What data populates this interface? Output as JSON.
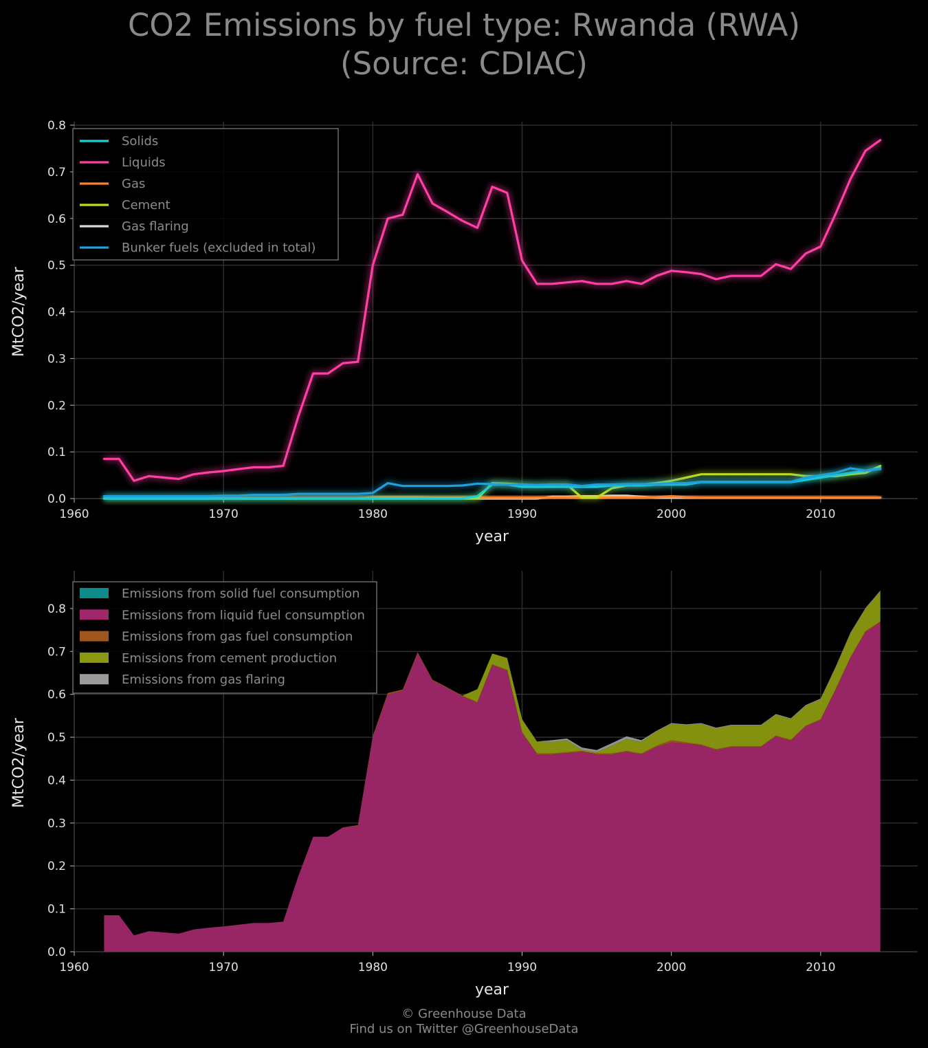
{
  "title": {
    "line1": "CO2 Emissions by fuel type: Rwanda (RWA)",
    "line2": "(Source: CDIAC)"
  },
  "footer": {
    "line1": "© Greenhouse Data",
    "line2": "Find us on Twitter @GreenhouseData"
  },
  "chart_data": [
    {
      "type": "line",
      "xlabel": "year",
      "ylabel": "MtCO2/year",
      "xlim": [
        1960,
        2016.5
      ],
      "ylim": [
        0,
        0.8
      ],
      "xticks": [
        1960,
        1970,
        1980,
        1990,
        2000,
        2010
      ],
      "xtick_labels": [
        "1960",
        "1970",
        "1980",
        "1990",
        "2000",
        "2010"
      ],
      "yticks": [
        0,
        0.1,
        0.2,
        0.3,
        0.4,
        0.5,
        0.6,
        0.7,
        0.8
      ],
      "ytick_labels": [
        "0.0",
        "0.1",
        "0.2",
        "0.3",
        "0.4",
        "0.5",
        "0.6",
        "0.7",
        "0.8"
      ],
      "grid": true,
      "legend_position": "top-left",
      "x": [
        1962,
        1963,
        1964,
        1965,
        1966,
        1967,
        1968,
        1969,
        1970,
        1971,
        1972,
        1973,
        1974,
        1975,
        1976,
        1977,
        1978,
        1979,
        1980,
        1981,
        1982,
        1983,
        1984,
        1985,
        1986,
        1987,
        1988,
        1989,
        1990,
        1991,
        1992,
        1993,
        1994,
        1995,
        1996,
        1997,
        1998,
        1999,
        2000,
        2001,
        2002,
        2003,
        2004,
        2005,
        2006,
        2007,
        2008,
        2009,
        2010,
        2011,
        2012,
        2013,
        2014
      ],
      "series": [
        {
          "name": "Solids",
          "color": "#17d4d4",
          "values": [
            0,
            0,
            0,
            0,
            0,
            0,
            0,
            0,
            0,
            0,
            0,
            0,
            0,
            0,
            0,
            0,
            0,
            0,
            0,
            0,
            0,
            0,
            0,
            0,
            0,
            0.005,
            0.03,
            0.03,
            0.025,
            0.025,
            0.025,
            0.025,
            0.025,
            0.025,
            0.028,
            0.028,
            0.028,
            0.03,
            0.03,
            0.03,
            0.035,
            0.035,
            0.035,
            0.035,
            0.035,
            0.035,
            0.035,
            0.04,
            0.045,
            0.05,
            0.055,
            0.06,
            0.065
          ]
        },
        {
          "name": "Liquids",
          "color": "#ff3fa4",
          "values": [
            0.085,
            0.085,
            0.038,
            0.048,
            0.045,
            0.042,
            0.052,
            0.056,
            0.059,
            0.063,
            0.067,
            0.067,
            0.07,
            0.175,
            0.268,
            0.268,
            0.29,
            0.293,
            0.5,
            0.6,
            0.608,
            0.695,
            0.632,
            0.614,
            0.595,
            0.58,
            0.668,
            0.655,
            0.51,
            0.46,
            0.46,
            0.463,
            0.466,
            0.46,
            0.46,
            0.466,
            0.46,
            0.477,
            0.488,
            0.485,
            0.481,
            0.47,
            0.477,
            0.477,
            0.477,
            0.502,
            0.492,
            0.525,
            0.54,
            0.61,
            0.685,
            0.745,
            0.768
          ]
        },
        {
          "name": "Gas",
          "color": "#ff7f2a",
          "values": [
            0,
            0,
            0,
            0,
            0,
            0,
            0,
            0,
            0,
            0,
            0,
            0,
            0,
            0,
            0,
            0,
            0,
            0,
            0.003,
            0.003,
            0.003,
            0.003,
            0.002,
            0.002,
            0.002,
            0.002,
            0.002,
            0.002,
            0.002,
            0.002,
            0.002,
            0.002,
            0.002,
            0.002,
            0.002,
            0.002,
            0.002,
            0.003,
            0.005,
            0.003,
            0.002,
            0.002,
            0.002,
            0.002,
            0.002,
            0.002,
            0.002,
            0.002,
            0.002,
            0.002,
            0.002,
            0.002,
            0.002
          ]
        },
        {
          "name": "Cement",
          "color": "#c2dc1c",
          "values": [
            0,
            0,
            0,
            0,
            0,
            0,
            0,
            0,
            0,
            0,
            0,
            0,
            0,
            0,
            0,
            0,
            0,
            0,
            0,
            0,
            0,
            0,
            0,
            0,
            0,
            0,
            0.033,
            0.032,
            0.03,
            0.028,
            0.03,
            0.03,
            0.002,
            0.002,
            0.022,
            0.028,
            0.03,
            0.033,
            0.038,
            0.045,
            0.052,
            0.052,
            0.052,
            0.052,
            0.052,
            0.052,
            0.052,
            0.048,
            0.048,
            0.048,
            0.052,
            0.055,
            0.07
          ]
        },
        {
          "name": "Gas flaring",
          "color": "#d8d8d8",
          "values": [
            0,
            0,
            0,
            0,
            0,
            0,
            0,
            0,
            0,
            0,
            0,
            0,
            0,
            0,
            0,
            0,
            0,
            0,
            0,
            0,
            0,
            0,
            0,
            0,
            0,
            0,
            0,
            0,
            0,
            0,
            0.004,
            0.004,
            0.005,
            0.005,
            0.006,
            0.006,
            0.004,
            0.002,
            0.002,
            0.002,
            0.002,
            0.002,
            0.002,
            0.002,
            0.002,
            0.002,
            0.002,
            0.002,
            0.002,
            0.002,
            0.002,
            0.002,
            0.002
          ]
        },
        {
          "name": "Bunker fuels (excluded in total)",
          "color": "#1f9fdb",
          "values": [
            0.005,
            0.005,
            0.005,
            0.005,
            0.005,
            0.005,
            0.005,
            0.005,
            0.006,
            0.006,
            0.008,
            0.008,
            0.008,
            0.01,
            0.01,
            0.01,
            0.01,
            0.01,
            0.012,
            0.033,
            0.027,
            0.027,
            0.027,
            0.027,
            0.028,
            0.032,
            0.031,
            0.03,
            0.03,
            0.029,
            0.03,
            0.03,
            0.027,
            0.03,
            0.03,
            0.031,
            0.031,
            0.031,
            0.033,
            0.033,
            0.036,
            0.036,
            0.036,
            0.036,
            0.036,
            0.036,
            0.036,
            0.045,
            0.05,
            0.055,
            0.065,
            0.06,
            0.063
          ]
        }
      ]
    },
    {
      "type": "area",
      "stacked": true,
      "xlabel": "year",
      "ylabel": "MtCO2/year",
      "xlim": [
        1960,
        2016.5
      ],
      "ylim": [
        0,
        0.88
      ],
      "xticks": [
        1960,
        1970,
        1980,
        1990,
        2000,
        2010
      ],
      "xtick_labels": [
        "1960",
        "1970",
        "1980",
        "1990",
        "2000",
        "2010"
      ],
      "yticks": [
        0,
        0.1,
        0.2,
        0.3,
        0.4,
        0.5,
        0.6,
        0.7,
        0.8
      ],
      "ytick_labels": [
        "0.0",
        "0.1",
        "0.2",
        "0.3",
        "0.4",
        "0.5",
        "0.6",
        "0.7",
        "0.8"
      ],
      "grid": true,
      "legend_position": "top-left",
      "x": [
        1962,
        1963,
        1964,
        1965,
        1966,
        1967,
        1968,
        1969,
        1970,
        1971,
        1972,
        1973,
        1974,
        1975,
        1976,
        1977,
        1978,
        1979,
        1980,
        1981,
        1982,
        1983,
        1984,
        1985,
        1986,
        1987,
        1988,
        1989,
        1990,
        1991,
        1992,
        1993,
        1994,
        1995,
        1996,
        1997,
        1998,
        1999,
        2000,
        2001,
        2002,
        2003,
        2004,
        2005,
        2006,
        2007,
        2008,
        2009,
        2010,
        2011,
        2012,
        2013,
        2014
      ],
      "series": [
        {
          "name": "Emissions from solid fuel consumption",
          "color": "#0d8a8a",
          "values": [
            0,
            0,
            0,
            0,
            0,
            0,
            0,
            0,
            0,
            0,
            0,
            0,
            0,
            0,
            0,
            0,
            0,
            0,
            0,
            0,
            0,
            0,
            0,
            0,
            0,
            0,
            0,
            0,
            0,
            0,
            0,
            0,
            0,
            0,
            0,
            0,
            0,
            0,
            0,
            0,
            0,
            0,
            0,
            0,
            0,
            0,
            0,
            0,
            0,
            0,
            0,
            0,
            0
          ]
        },
        {
          "name": "Emissions from liquid fuel consumption",
          "color": "#a0286a",
          "values": [
            0.085,
            0.085,
            0.038,
            0.048,
            0.045,
            0.042,
            0.052,
            0.056,
            0.059,
            0.063,
            0.067,
            0.067,
            0.07,
            0.175,
            0.268,
            0.268,
            0.29,
            0.293,
            0.5,
            0.6,
            0.608,
            0.695,
            0.632,
            0.614,
            0.595,
            0.58,
            0.668,
            0.655,
            0.51,
            0.46,
            0.46,
            0.463,
            0.466,
            0.46,
            0.46,
            0.466,
            0.46,
            0.477,
            0.488,
            0.485,
            0.481,
            0.47,
            0.477,
            0.477,
            0.477,
            0.502,
            0.492,
            0.525,
            0.54,
            0.61,
            0.685,
            0.745,
            0.768
          ]
        },
        {
          "name": "Emissions from gas fuel consumption",
          "color": "#a0551a",
          "values": [
            0,
            0,
            0,
            0,
            0,
            0,
            0,
            0,
            0,
            0,
            0,
            0,
            0,
            0,
            0,
            0,
            0,
            0.002,
            0.003,
            0.003,
            0.003,
            0.003,
            0.002,
            0.002,
            0.002,
            0.002,
            0.002,
            0.002,
            0.002,
            0.002,
            0.002,
            0.002,
            0.002,
            0.002,
            0.002,
            0.002,
            0.002,
            0.003,
            0.005,
            0.003,
            0.002,
            0.002,
            0.002,
            0.002,
            0.002,
            0.002,
            0.002,
            0.002,
            0.002,
            0.002,
            0.002,
            0.002,
            0.002
          ]
        },
        {
          "name": "Emissions from cement production",
          "color": "#8a990f",
          "values": [
            0,
            0,
            0,
            0,
            0,
            0,
            0,
            0,
            0,
            0,
            0,
            0,
            0,
            0,
            0,
            0,
            0,
            0,
            0,
            0,
            0,
            0,
            0,
            0,
            0,
            0.03,
            0.025,
            0.028,
            0.03,
            0.028,
            0.027,
            0.028,
            0.003,
            0.003,
            0.018,
            0.028,
            0.027,
            0.033,
            0.038,
            0.04,
            0.048,
            0.048,
            0.048,
            0.048,
            0.048,
            0.048,
            0.048,
            0.046,
            0.046,
            0.05,
            0.055,
            0.052,
            0.07
          ]
        },
        {
          "name": "Emissions from gas flaring",
          "color": "#9a9a9a",
          "values": [
            0,
            0,
            0,
            0,
            0,
            0,
            0,
            0,
            0,
            0,
            0,
            0,
            0,
            0,
            0,
            0,
            0,
            0,
            0,
            0,
            0,
            0,
            0,
            0,
            0,
            0,
            0,
            0,
            0,
            0,
            0.004,
            0.004,
            0.005,
            0.005,
            0.006,
            0.006,
            0.004,
            0.002,
            0.002,
            0.002,
            0.002,
            0.002,
            0.002,
            0.002,
            0.002,
            0.002,
            0.002,
            0.002,
            0.002,
            0.002,
            0.002,
            0.002,
            0.002
          ]
        }
      ]
    }
  ]
}
